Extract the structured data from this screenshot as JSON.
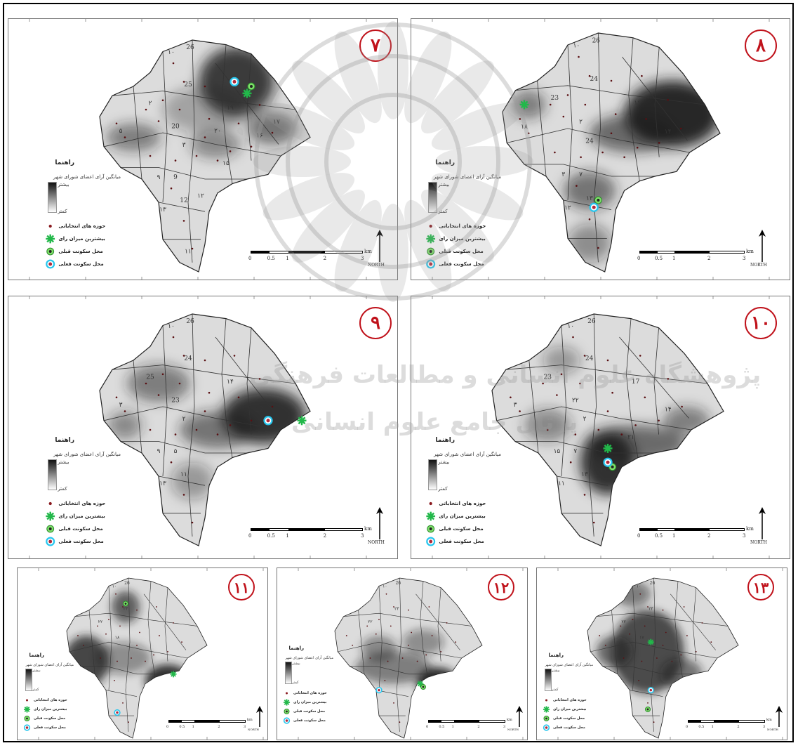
{
  "colors": {
    "accent": "#c0121b",
    "dark": "#2b2b2b",
    "light": "#d9d9d9"
  },
  "legend": {
    "title": "راهنما",
    "subtitle": "میانگین آرای اعضای شورای شهر",
    "high": "بیشتر",
    "low": "کمتر",
    "items": [
      "حوزه های انتخاباتی",
      "بیشترین میزان رای",
      "محل سکونت قبلی",
      "محل سکونت فعلی"
    ]
  },
  "scale": {
    "ticks": [
      "0",
      "0.5",
      "1",
      "2",
      "3"
    ],
    "unit": "km"
  },
  "north_label": "NORTH",
  "panels": [
    {
      "number": "۷",
      "zone_labels": [
        "۱۰",
        "26",
        "25",
        "۲",
        "20",
        "۳",
        "۵",
        "9",
        "۹",
        "۱۹",
        "۱۶",
        "12",
        "۱۳",
        "۱۲",
        "۱۵",
        "۱۷",
        "۱۱",
        "۲۰"
      ]
    },
    {
      "number": "۸",
      "zone_labels": [
        "۱۰",
        "26",
        "24",
        "23",
        "۲",
        "24",
        "۱۸",
        "۷",
        "۳",
        "۱۴",
        "۱۴",
        "۱۳",
        "۱۲"
      ]
    },
    {
      "number": "۹",
      "zone_labels": [
        "۱۰",
        "26",
        "24",
        "25",
        "23",
        "۲",
        "۳",
        "۵",
        "۹",
        "۱۴",
        "12",
        "۱۱",
        "۱۳"
      ]
    },
    {
      "number": "۱۰",
      "zone_labels": [
        "۱۰",
        "26",
        "24",
        "23",
        "۲۲",
        "۲",
        "۳",
        "۷",
        "۱۵",
        "17",
        "۱۴",
        "۱۳",
        "۱۱",
        "۱۸",
        "۲۱"
      ]
    },
    {
      "number": "۱۱",
      "zone_labels": [
        "۱۰",
        "26",
        "۲۳",
        "۲۲",
        "۱۸"
      ]
    },
    {
      "number": "۱۲",
      "zone_labels": [
        "۱۰",
        "26",
        "۲۳",
        "۲۲"
      ]
    },
    {
      "number": "۱۳",
      "zone_labels": [
        "۱۰",
        "26",
        "۲۳",
        "۲۲",
        "۱۷"
      ]
    }
  ]
}
